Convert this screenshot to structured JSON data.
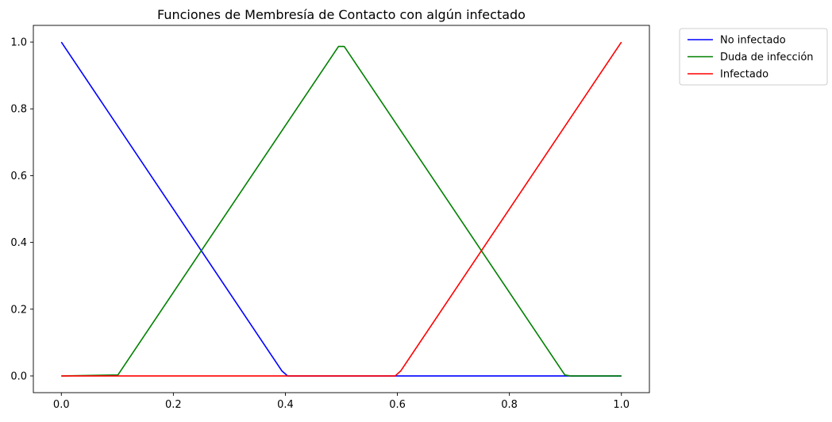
{
  "chart_data": {
    "type": "line",
    "title": "Funciones de Membresía de Contacto con algún infectado",
    "xlabel": "",
    "ylabel": "",
    "xlim": [
      -0.05,
      1.05
    ],
    "ylim": [
      -0.05,
      1.05
    ],
    "xticks": [
      "0.0",
      "0.2",
      "0.4",
      "0.6",
      "0.8",
      "1.0"
    ],
    "yticks": [
      "0.0",
      "0.2",
      "0.4",
      "0.6",
      "0.8",
      "1.0"
    ],
    "grid": false,
    "legend_position": "outside-top-right",
    "series": [
      {
        "name": "No infectado",
        "color": "#0000ff",
        "x": [
          0.0,
          0.3939,
          0.404,
          1.0
        ],
        "y": [
          1.0,
          0.015,
          0.0,
          0.0
        ]
      },
      {
        "name": "Duda de infección",
        "color": "#008000",
        "x": [
          0.0,
          0.101,
          0.4949,
          0.5051,
          0.899,
          0.909,
          1.0
        ],
        "y": [
          0.0,
          0.003,
          0.987,
          0.987,
          0.003,
          0.0,
          0.0
        ]
      },
      {
        "name": "Infectado",
        "color": "#ff0000",
        "x": [
          0.0,
          0.596,
          0.606,
          1.0
        ],
        "y": [
          0.0,
          0.0,
          0.015,
          1.0
        ]
      }
    ]
  }
}
